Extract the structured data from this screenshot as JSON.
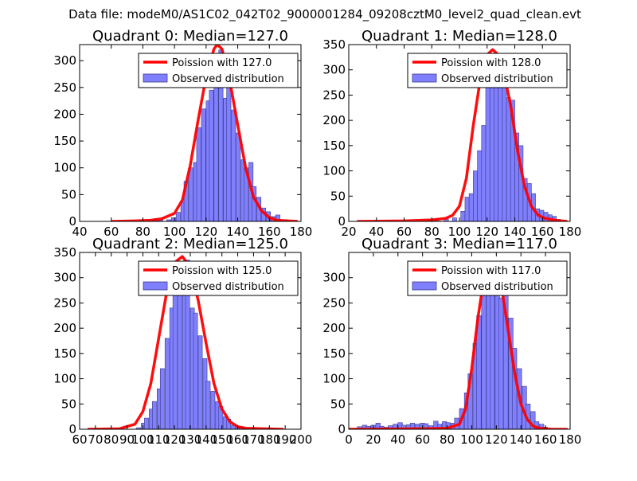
{
  "figure_title": "Data file: modeM0/AS1C02_042T02_9000001284_09208cztM0_level2_quad_clean.evt",
  "colors": {
    "bar_fill": "#8080ff",
    "bar_edge": "#3a3a8f",
    "poisson_line": "#ff0000"
  },
  "chart_data": [
    {
      "type": "bar",
      "title": "Quadrant 0: Median=127.0",
      "xlim": [
        40,
        180
      ],
      "ylim": [
        0,
        330
      ],
      "xticks": [
        "40",
        "60",
        "80",
        "100",
        "120",
        "140",
        "160",
        "180"
      ],
      "yticks": [
        "0",
        "50",
        "100",
        "150",
        "200",
        "250",
        "300"
      ],
      "legend": {
        "position": "top-right",
        "line_label": "Poission with 127.0",
        "bar_label": "Observed distribution"
      },
      "bin_width": 2.7,
      "histogram_bins": [
        [
          60,
          1
        ],
        [
          73,
          1
        ],
        [
          84,
          3
        ],
        [
          87,
          5
        ],
        [
          90,
          2
        ],
        [
          95,
          3
        ],
        [
          98,
          7
        ],
        [
          101,
          17
        ],
        [
          104,
          37
        ],
        [
          106,
          75
        ],
        [
          109,
          100
        ],
        [
          112,
          110
        ],
        [
          114,
          175
        ],
        [
          117,
          210
        ],
        [
          120,
          225
        ],
        [
          122,
          245
        ],
        [
          125,
          275
        ],
        [
          128,
          320
        ],
        [
          131,
          230
        ],
        [
          133,
          295
        ],
        [
          136,
          208
        ],
        [
          139,
          165
        ],
        [
          142,
          115
        ],
        [
          144,
          100
        ],
        [
          147,
          110
        ],
        [
          149,
          65
        ],
        [
          152,
          45
        ],
        [
          155,
          25
        ],
        [
          158,
          18
        ],
        [
          161,
          9
        ],
        [
          164,
          12
        ],
        [
          167,
          3
        ],
        [
          169,
          2
        ]
      ],
      "poisson_curve": [
        [
          60,
          0
        ],
        [
          75,
          1
        ],
        [
          85,
          2
        ],
        [
          92,
          5
        ],
        [
          100,
          15
        ],
        [
          105,
          40
        ],
        [
          110,
          105
        ],
        [
          115,
          190
        ],
        [
          120,
          270
        ],
        [
          125,
          322
        ],
        [
          127,
          330
        ],
        [
          130,
          322
        ],
        [
          135,
          262
        ],
        [
          140,
          180
        ],
        [
          145,
          100
        ],
        [
          150,
          45
        ],
        [
          155,
          20
        ],
        [
          160,
          7
        ],
        [
          165,
          2
        ],
        [
          178,
          0
        ]
      ]
    },
    {
      "type": "bar",
      "title": "Quadrant 1: Median=128.0",
      "xlim": [
        20,
        180
      ],
      "ylim": [
        0,
        350
      ],
      "xticks": [
        "20",
        "40",
        "60",
        "80",
        "100",
        "120",
        "140",
        "160",
        "180"
      ],
      "yticks": [
        "0",
        "50",
        "100",
        "150",
        "200",
        "250",
        "300",
        "350"
      ],
      "legend": {
        "position": "top-right",
        "line_label": "Poission with 128.0",
        "bar_label": "Observed distribution"
      },
      "bin_width": 3.0,
      "histogram_bins": [
        [
          26,
          1
        ],
        [
          50,
          1
        ],
        [
          62,
          1
        ],
        [
          77,
          3
        ],
        [
          82,
          5
        ],
        [
          89,
          5
        ],
        [
          95,
          7
        ],
        [
          101,
          20
        ],
        [
          104,
          48
        ],
        [
          107,
          55
        ],
        [
          110,
          100
        ],
        [
          113,
          140
        ],
        [
          116,
          190
        ],
        [
          119,
          270
        ],
        [
          122,
          285
        ],
        [
          125,
          300
        ],
        [
          128,
          320
        ],
        [
          131,
          270
        ],
        [
          134,
          245
        ],
        [
          137,
          240
        ],
        [
          140,
          175
        ],
        [
          143,
          150
        ],
        [
          146,
          85
        ],
        [
          149,
          75
        ],
        [
          152,
          55
        ],
        [
          155,
          25
        ],
        [
          158,
          22
        ],
        [
          161,
          18
        ],
        [
          164,
          13
        ],
        [
          167,
          10
        ],
        [
          170,
          4
        ]
      ],
      "poisson_curve": [
        [
          26,
          0
        ],
        [
          60,
          1
        ],
        [
          80,
          3
        ],
        [
          90,
          6
        ],
        [
          95,
          12
        ],
        [
          100,
          30
        ],
        [
          105,
          85
        ],
        [
          110,
          190
        ],
        [
          115,
          280
        ],
        [
          120,
          330
        ],
        [
          124,
          340
        ],
        [
          128,
          330
        ],
        [
          132,
          295
        ],
        [
          137,
          230
        ],
        [
          142,
          140
        ],
        [
          147,
          70
        ],
        [
          152,
          30
        ],
        [
          157,
          12
        ],
        [
          162,
          6
        ],
        [
          170,
          2
        ],
        [
          178,
          0
        ]
      ]
    },
    {
      "type": "bar",
      "title": "Quadrant 2: Median=125.0",
      "xlim": [
        60,
        200
      ],
      "ylim": [
        0,
        350
      ],
      "xticks": [
        "60",
        "70",
        "80",
        "90",
        "100",
        "110",
        "120",
        "130",
        "140",
        "150",
        "160",
        "170",
        "180",
        "190",
        "200"
      ],
      "yticks": [
        "0",
        "50",
        "100",
        "150",
        "200",
        "250",
        "300",
        "350"
      ],
      "legend": {
        "position": "top-right",
        "line_label": "Poission with 125.0",
        "bar_label": "Observed distribution"
      },
      "bin_width": 2.6,
      "histogram_bins": [
        [
          96,
          3
        ],
        [
          99,
          12
        ],
        [
          101,
          22
        ],
        [
          104,
          40
        ],
        [
          106,
          55
        ],
        [
          109,
          80
        ],
        [
          111,
          120
        ],
        [
          114,
          180
        ],
        [
          117,
          240
        ],
        [
          119,
          305
        ],
        [
          122,
          265
        ],
        [
          125,
          300
        ],
        [
          127,
          335
        ],
        [
          130,
          240
        ],
        [
          132,
          230
        ],
        [
          135,
          185
        ],
        [
          138,
          140
        ],
        [
          140,
          95
        ],
        [
          143,
          75
        ],
        [
          146,
          55
        ],
        [
          148,
          45
        ],
        [
          151,
          25
        ],
        [
          153,
          20
        ],
        [
          156,
          8
        ],
        [
          159,
          6
        ],
        [
          161,
          5
        ],
        [
          164,
          3
        ]
      ],
      "poisson_curve": [
        [
          65,
          0
        ],
        [
          85,
          1
        ],
        [
          95,
          10
        ],
        [
          100,
          35
        ],
        [
          105,
          90
        ],
        [
          110,
          180
        ],
        [
          115,
          270
        ],
        [
          120,
          330
        ],
        [
          125,
          342
        ],
        [
          130,
          320
        ],
        [
          135,
          255
        ],
        [
          140,
          170
        ],
        [
          145,
          90
        ],
        [
          150,
          40
        ],
        [
          155,
          15
        ],
        [
          160,
          5
        ],
        [
          165,
          2
        ],
        [
          189,
          0
        ]
      ]
    },
    {
      "type": "bar",
      "title": "Quadrant 3: Median=117.0",
      "xlim": [
        0,
        180
      ],
      "ylim": [
        0,
        350
      ],
      "xticks": [
        "0",
        "20",
        "40",
        "60",
        "80",
        "100",
        "120",
        "140",
        "160",
        "180"
      ],
      "yticks": [
        "0",
        "50",
        "100",
        "150",
        "200",
        "250",
        "300"
      ],
      "legend": {
        "position": "top-right",
        "line_label": "Poission with 117.0",
        "bar_label": "Observed distribution"
      },
      "bin_width": 3.6,
      "histogram_bins": [
        [
          7,
          5
        ],
        [
          11,
          8
        ],
        [
          14,
          6
        ],
        [
          18,
          8
        ],
        [
          22,
          12
        ],
        [
          25,
          6
        ],
        [
          29,
          4
        ],
        [
          32,
          7
        ],
        [
          36,
          10
        ],
        [
          40,
          13
        ],
        [
          43,
          8
        ],
        [
          47,
          9
        ],
        [
          50,
          12
        ],
        [
          54,
          10
        ],
        [
          58,
          12
        ],
        [
          61,
          11
        ],
        [
          65,
          7
        ],
        [
          69,
          16
        ],
        [
          72,
          10
        ],
        [
          76,
          15
        ],
        [
          79,
          13
        ],
        [
          83,
          12
        ],
        [
          86,
          22
        ],
        [
          90,
          41
        ],
        [
          94,
          72
        ],
        [
          97,
          110
        ],
        [
          101,
          170
        ],
        [
          104,
          225
        ],
        [
          108,
          270
        ],
        [
          112,
          310
        ],
        [
          115,
          270
        ],
        [
          119,
          330
        ],
        [
          122,
          260
        ],
        [
          126,
          300
        ],
        [
          130,
          220
        ],
        [
          133,
          160
        ],
        [
          137,
          120
        ],
        [
          141,
          85
        ],
        [
          144,
          50
        ],
        [
          148,
          35
        ],
        [
          151,
          15
        ],
        [
          155,
          10
        ],
        [
          158,
          4
        ]
      ],
      "poisson_curve": [
        [
          0,
          0
        ],
        [
          60,
          1
        ],
        [
          80,
          2
        ],
        [
          90,
          10
        ],
        [
          95,
          40
        ],
        [
          100,
          120
        ],
        [
          105,
          220
        ],
        [
          110,
          300
        ],
        [
          115,
          330
        ],
        [
          120,
          320
        ],
        [
          125,
          270
        ],
        [
          130,
          190
        ],
        [
          135,
          110
        ],
        [
          140,
          50
        ],
        [
          145,
          20
        ],
        [
          150,
          6
        ],
        [
          155,
          2
        ],
        [
          165,
          0
        ],
        [
          178,
          0
        ]
      ]
    }
  ]
}
